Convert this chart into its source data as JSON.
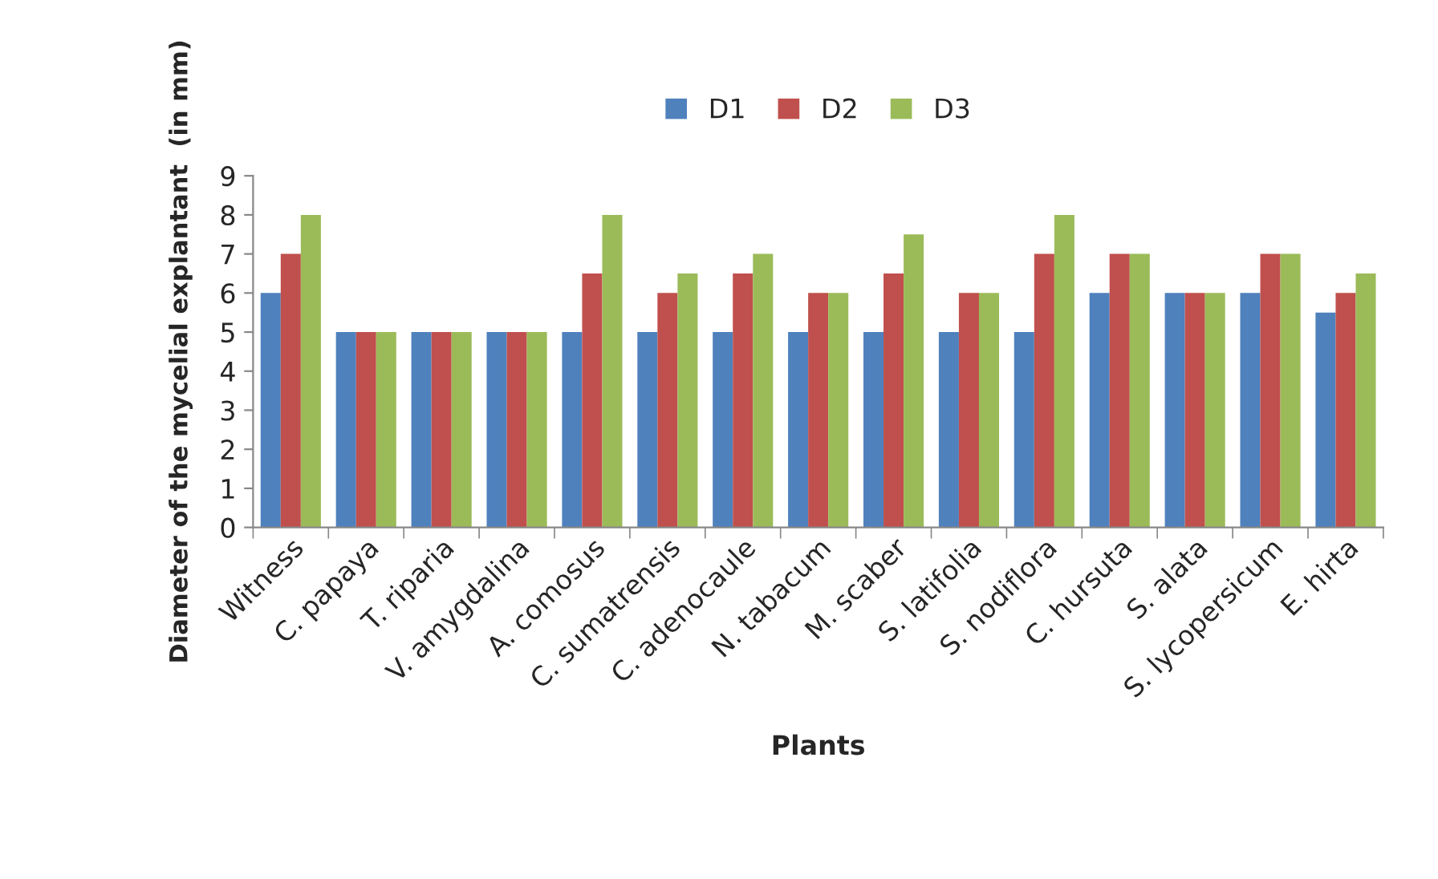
{
  "chart_data": {
    "type": "bar",
    "xlabel": "Plants",
    "ylabel": "Diameter of the mycelial explantant  (in mm)",
    "categories": [
      "Witness",
      "C. papaya",
      "T. riparia",
      "V. amygdalina",
      "A. comosus",
      "C. sumatrensis",
      "C. adenocaule",
      "N. tabacum",
      "M. scaber",
      "S. latifolia",
      "S. nodiflora",
      "C. hursuta",
      "S. alata",
      "S. lycopersicum",
      "E. hirta"
    ],
    "series": [
      {
        "name": "D1",
        "color": "#4f81bd",
        "values": [
          6,
          5,
          5,
          5,
          5,
          5,
          5,
          5,
          5,
          5,
          5,
          6,
          6,
          6,
          5.5
        ]
      },
      {
        "name": "D2",
        "color": "#c0504d",
        "values": [
          7,
          5,
          5,
          5,
          6.5,
          6,
          6.5,
          6,
          6.5,
          6,
          7,
          7,
          6,
          7,
          6
        ]
      },
      {
        "name": "D3",
        "color": "#9bbb59",
        "values": [
          8,
          5,
          5,
          5,
          8,
          6.5,
          7,
          6,
          7.5,
          6,
          8,
          7,
          6,
          7,
          6.5
        ]
      }
    ],
    "ylim": [
      0,
      9
    ],
    "yticks": [
      0,
      1,
      2,
      3,
      4,
      5,
      6,
      7,
      8,
      9
    ],
    "grid": false,
    "legend": "top"
  }
}
